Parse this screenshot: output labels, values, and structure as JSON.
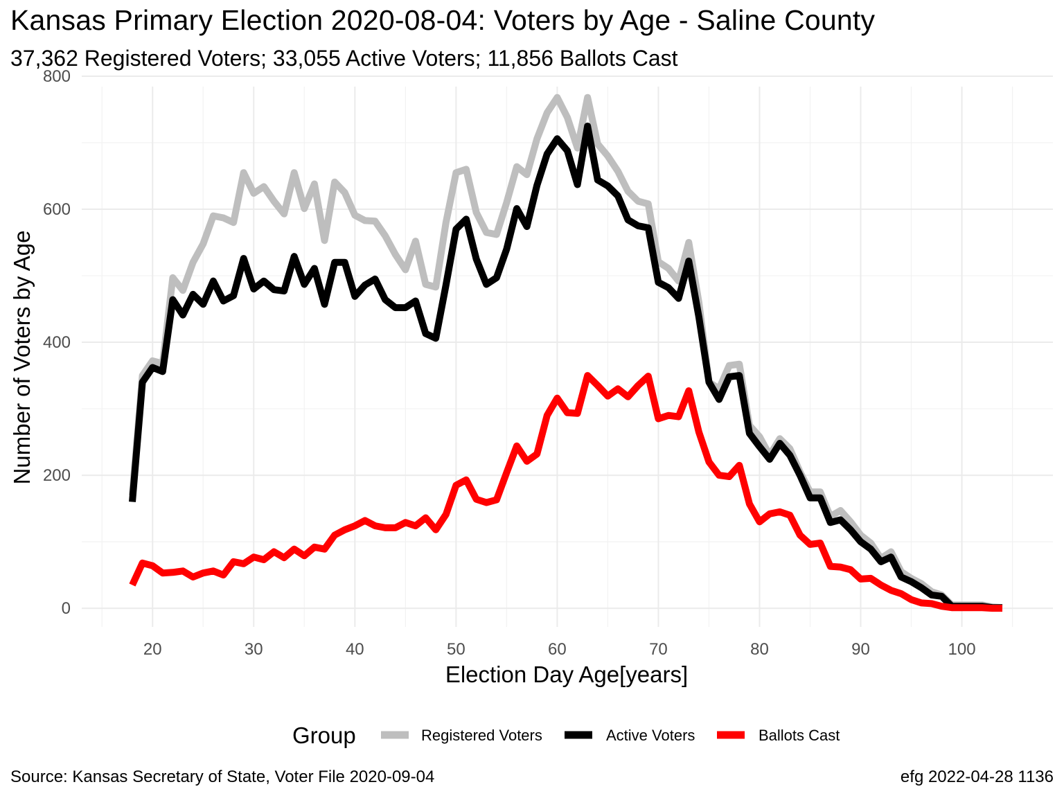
{
  "chart_data": {
    "type": "line",
    "title": "Kansas Primary Election 2020-08-04:  Voters by Age - Saline County",
    "subtitle": "37,362 Registered Voters; 33,055 Active Voters; 11,856 Ballots Cast",
    "xlabel": "Election Day Age[years]",
    "ylabel": "Number of Voters by Age",
    "xlim": [
      13,
      109
    ],
    "ylim": [
      -28,
      800
    ],
    "x_ticks": [
      20,
      30,
      40,
      50,
      60,
      70,
      80,
      90,
      100
    ],
    "y_ticks": [
      0,
      200,
      400,
      600,
      800
    ],
    "grid": true,
    "legend": {
      "title": "Group",
      "position": "bottom"
    },
    "x": [
      18,
      19,
      20,
      21,
      22,
      23,
      24,
      25,
      26,
      27,
      28,
      29,
      30,
      31,
      32,
      33,
      34,
      35,
      36,
      37,
      38,
      39,
      40,
      41,
      42,
      43,
      44,
      45,
      46,
      47,
      48,
      49,
      50,
      51,
      52,
      53,
      54,
      55,
      56,
      57,
      58,
      59,
      60,
      61,
      62,
      63,
      64,
      65,
      66,
      67,
      68,
      69,
      70,
      71,
      72,
      73,
      74,
      75,
      76,
      77,
      78,
      79,
      80,
      81,
      82,
      83,
      84,
      85,
      86,
      87,
      88,
      89,
      90,
      91,
      92,
      93,
      94,
      95,
      96,
      97,
      98,
      99,
      100,
      101,
      102,
      103,
      104
    ],
    "series": [
      {
        "name": "Registered Voters",
        "color": "#bebebe",
        "values": [
          170,
          350,
          372,
          368,
          497,
          478,
          520,
          548,
          590,
          587,
          580,
          655,
          624,
          634,
          612,
          593,
          655,
          601,
          638,
          553,
          641,
          625,
          591,
          583,
          582,
          560,
          532,
          509,
          552,
          487,
          483,
          580,
          655,
          660,
          595,
          565,
          562,
          610,
          664,
          652,
          706,
          745,
          768,
          738,
          692,
          768,
          698,
          680,
          657,
          627,
          612,
          608,
          521,
          511,
          492,
          550,
          460,
          340,
          330,
          365,
          367,
          275,
          258,
          230,
          255,
          240,
          205,
          175,
          175,
          138,
          147,
          130,
          110,
          98,
          75,
          85,
          55,
          45,
          37,
          25,
          20,
          5,
          5,
          5,
          5,
          2,
          1
        ]
      },
      {
        "name": "Active Voters",
        "color": "#000000",
        "values": [
          160,
          340,
          362,
          356,
          464,
          441,
          472,
          457,
          492,
          462,
          470,
          526,
          480,
          492,
          479,
          477,
          529,
          487,
          511,
          457,
          520,
          520,
          469,
          486,
          495,
          464,
          452,
          452,
          462,
          413,
          406,
          486,
          570,
          585,
          525,
          487,
          497,
          540,
          601,
          574,
          636,
          683,
          706,
          688,
          637,
          725,
          644,
          635,
          620,
          584,
          575,
          572,
          490,
          482,
          466,
          522,
          438,
          340,
          314,
          348,
          350,
          263,
          243,
          224,
          248,
          230,
          200,
          166,
          166,
          129,
          133,
          118,
          100,
          89,
          70,
          77,
          47,
          40,
          31,
          20,
          18,
          3,
          3,
          3,
          3,
          1,
          1
        ]
      },
      {
        "name": "Ballots Cast",
        "color": "#ff0000",
        "values": [
          35,
          68,
          64,
          53,
          54,
          56,
          47,
          53,
          56,
          50,
          70,
          67,
          77,
          73,
          85,
          76,
          89,
          79,
          92,
          89,
          110,
          118,
          124,
          132,
          124,
          121,
          121,
          129,
          124,
          136,
          118,
          141,
          185,
          193,
          164,
          159,
          163,
          204,
          244,
          221,
          232,
          290,
          316,
          294,
          293,
          350,
          335,
          319,
          330,
          318,
          335,
          349,
          285,
          290,
          288,
          327,
          265,
          220,
          200,
          198,
          215,
          157,
          130,
          142,
          145,
          140,
          110,
          96,
          98,
          63,
          62,
          58,
          44,
          45,
          35,
          27,
          22,
          13,
          8,
          7,
          3,
          1,
          1,
          1,
          1,
          0,
          0
        ]
      }
    ]
  },
  "footer": {
    "source": "Source:  Kansas Secretary of State, Voter File  2020-09-04",
    "credit": "efg 2022-04-28 1136"
  }
}
